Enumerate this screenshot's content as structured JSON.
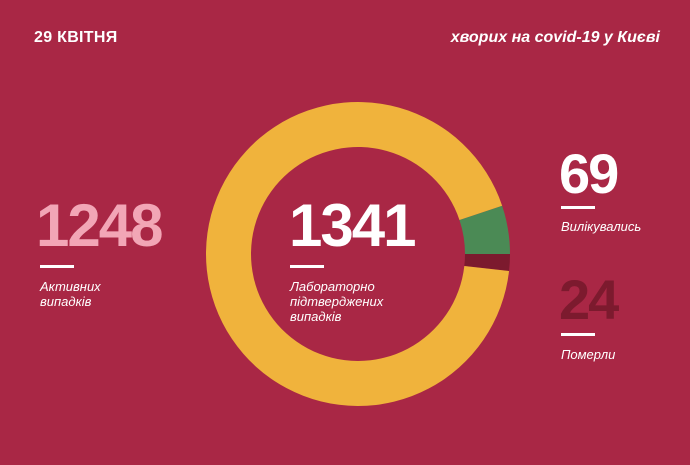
{
  "date": "29 КВІТНЯ",
  "headline": "хворих на covid-19 у Києві",
  "active": {
    "value": "1248",
    "caption_line1": "Активних",
    "caption_line2": "випадків"
  },
  "total": {
    "value": "1341",
    "caption_line1": "Лабораторно",
    "caption_line2": "підтверджених",
    "caption_line3": "випадків"
  },
  "recovered": {
    "value": "69",
    "caption": "Вилікувались"
  },
  "deaths": {
    "value": "24",
    "caption": "Померли"
  },
  "colors": {
    "background": "#a92745",
    "active": "#f0b33c",
    "recovered": "#4b8a55",
    "deaths": "#7c1a2e",
    "active_number": "#f2a6b6",
    "deaths_number": "#7c1a2e"
  },
  "chart_data": {
    "type": "pie",
    "donut": true,
    "categories": [
      "Активних випадків",
      "Вилікувались",
      "Померли"
    ],
    "values": [
      1248,
      69,
      24
    ],
    "total": 1341
  }
}
